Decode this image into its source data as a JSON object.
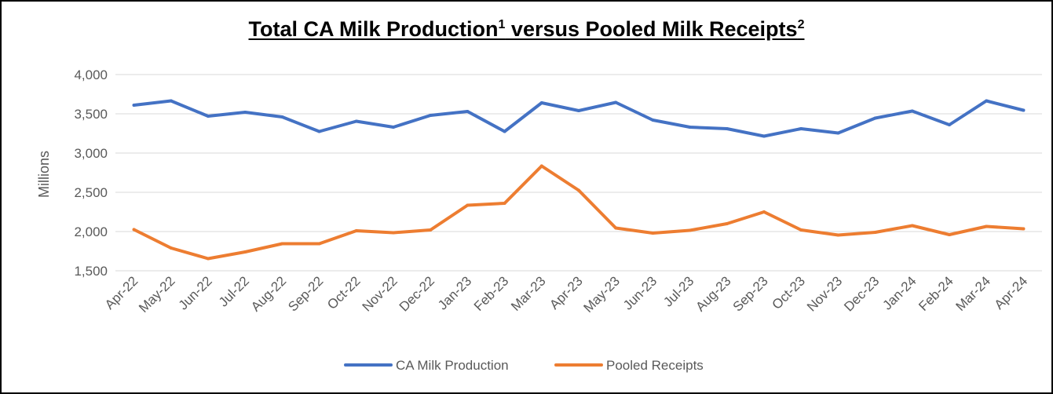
{
  "title": {
    "main": "Total CA Milk Production",
    "sup1": "1",
    "mid": " versus Pooled Milk Receipts",
    "sup2": "2"
  },
  "chart_data": {
    "type": "line",
    "ylabel": "Millions",
    "ylim": [
      1500,
      4000
    ],
    "yticks": [
      1500,
      2000,
      2500,
      3000,
      3500,
      4000
    ],
    "ytick_labels": [
      "1,500",
      "2,000",
      "2,500",
      "3,000",
      "3,500",
      "4,000"
    ],
    "grid": true,
    "legend_position": "bottom",
    "categories": [
      "Apr-22",
      "May-22",
      "Jun-22",
      "Jul-22",
      "Aug-22",
      "Sep-22",
      "Oct-22",
      "Nov-22",
      "Dec-22",
      "Jan-23",
      "Feb-23",
      "Mar-23",
      "Apr-23",
      "May-23",
      "Jun-23",
      "Jul-23",
      "Aug-23",
      "Sep-23",
      "Oct-23",
      "Nov-23",
      "Dec-23",
      "Jan-24",
      "Feb-24",
      "Mar-24",
      "Apr-24"
    ],
    "series": [
      {
        "name": "CA Milk Production",
        "color": "#4472C4",
        "values": [
          3610,
          3665,
          3470,
          3520,
          3460,
          3275,
          3405,
          3330,
          3480,
          3530,
          3275,
          3640,
          3540,
          3645,
          3420,
          3330,
          3310,
          3215,
          3310,
          3255,
          3445,
          3535,
          3360,
          3665,
          3545
        ]
      },
      {
        "name": "Pooled Receipts",
        "color": "#ED7D31",
        "values": [
          2025,
          1790,
          1655,
          1740,
          1845,
          1845,
          2010,
          1985,
          2020,
          2335,
          2360,
          2835,
          2525,
          2045,
          1980,
          2015,
          2100,
          2250,
          2020,
          1955,
          1990,
          2075,
          1960,
          2065,
          2035
        ]
      }
    ]
  }
}
